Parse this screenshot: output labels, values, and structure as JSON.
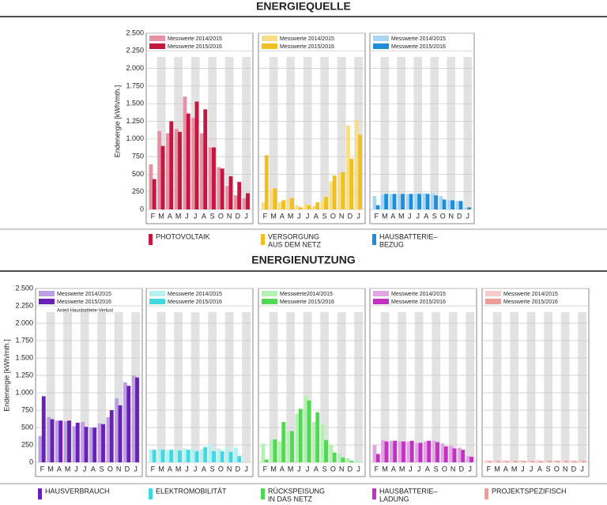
{
  "sections": [
    {
      "title": "ENERGIEQUELLE"
    },
    {
      "title": "ENERGIENUTZUNG"
    }
  ],
  "chart_data": [
    {
      "type": "bar",
      "ylabel": "Endenergie [kWh/mth.]",
      "caption": [
        "PHOTOVOLTAIK"
      ],
      "categories": [
        "F",
        "M",
        "A",
        "M",
        "J",
        "J",
        "A",
        "S",
        "O",
        "N",
        "D",
        "J"
      ],
      "ylim": [
        0,
        2500
      ],
      "yticks": [
        0,
        250,
        500,
        750,
        {
          "value": 1000,
          "label": "1.000"
        },
        {
          "value": 1250,
          "label": "1.250"
        },
        {
          "value": 1500,
          "label": "1.500"
        },
        {
          "value": 1750,
          "label": "1.750"
        },
        {
          "value": 2000,
          "label": "2.000"
        },
        {
          "value": 2250,
          "label": "2.250"
        },
        {
          "value": 2500,
          "label": "2.500"
        }
      ],
      "series": [
        {
          "name": "Messwerte 2014/2015",
          "color": "#e890a4",
          "values": [
            640,
            1110,
            1080,
            1140,
            1600,
            1300,
            1080,
            880,
            600,
            330,
            200,
            160
          ]
        },
        {
          "name": "Messwerte 2015/2016",
          "color": "#c4163e",
          "values": [
            430,
            900,
            1250,
            1100,
            1360,
            1530,
            1420,
            880,
            580,
            470,
            390,
            230
          ]
        }
      ]
    },
    {
      "type": "bar",
      "caption": [
        "VERSORGUNG",
        "AUS DEM NETZ"
      ],
      "categories": [
        "F",
        "M",
        "A",
        "M",
        "J",
        "J",
        "A",
        "S",
        "O",
        "N",
        "D",
        "J"
      ],
      "ylim": [
        0,
        2500
      ],
      "yticks": [
        0,
        250,
        500,
        750,
        1000,
        1250,
        1500,
        1750,
        2000,
        2250,
        2500
      ],
      "series": [
        {
          "name": "Messwerte 2014/2015",
          "color": "#f8de88",
          "values": [
            100,
            280,
            100,
            150,
            60,
            80,
            50,
            120,
            400,
            500,
            1190,
            1270
          ]
        },
        {
          "name": "Messwerte 2015/2016",
          "color": "#f0c020",
          "values": [
            770,
            300,
            130,
            160,
            30,
            60,
            100,
            180,
            480,
            530,
            720,
            1060
          ]
        }
      ]
    },
    {
      "type": "bar",
      "caption": [
        "HAUSBATTERIE–",
        "BEZUG"
      ],
      "categories": [
        "F",
        "M",
        "A",
        "M",
        "J",
        "J",
        "A",
        "S",
        "O",
        "N",
        "D",
        "J"
      ],
      "ylim": [
        0,
        2500
      ],
      "yticks": [
        0,
        250,
        500,
        750,
        1000,
        1250,
        1500,
        1750,
        2000,
        2250,
        2500
      ],
      "series": [
        {
          "name": "Messwerte 2014/2015",
          "color": "#a8d6f4",
          "values": [
            190,
            210,
            220,
            220,
            220,
            220,
            230,
            230,
            190,
            130,
            120,
            20
          ]
        },
        {
          "name": "Messwerte 2015/2016",
          "color": "#1e8ed8",
          "values": [
            60,
            220,
            220,
            220,
            220,
            220,
            220,
            200,
            140,
            130,
            120,
            30
          ]
        }
      ]
    },
    {
      "type": "bar",
      "ylabel": "Endenergie [kWh/mth.]",
      "caption": [
        "HAUSVERBRAUCH"
      ],
      "annotation": "Anteil Hausbatterie-Verlust",
      "categories": [
        "F",
        "M",
        "A",
        "M",
        "J",
        "J",
        "A",
        "S",
        "O",
        "N",
        "D",
        "J"
      ],
      "ylim": [
        0,
        2500
      ],
      "yticks": [
        0,
        250,
        500,
        750,
        {
          "value": 1000,
          "label": "1.000"
        },
        {
          "value": 1250,
          "label": "1.250"
        },
        {
          "value": 1500,
          "label": "1.500"
        },
        {
          "value": 1750,
          "label": "1.750"
        },
        {
          "value": 2000,
          "label": "2.000"
        },
        {
          "value": 2250,
          "label": "2.250"
        },
        {
          "value": 2500,
          "label": "2.500"
        }
      ],
      "series": [
        {
          "name": "Messwerte 2014/2015",
          "color": "#bca0e4",
          "values": [
            380,
            650,
            600,
            590,
            520,
            580,
            500,
            560,
            650,
            920,
            1150,
            1250
          ]
        },
        {
          "name": "Messwerte 2015/2016",
          "color": "#6a20b4",
          "values": [
            950,
            620,
            600,
            600,
            570,
            510,
            500,
            550,
            750,
            820,
            1100,
            1220
          ]
        }
      ]
    },
    {
      "type": "bar",
      "caption": [
        "ELEKTROMOBILITÄT"
      ],
      "categories": [
        "F",
        "M",
        "A",
        "M",
        "J",
        "J",
        "A",
        "S",
        "O",
        "N",
        "D",
        "J"
      ],
      "ylim": [
        0,
        2500
      ],
      "yticks": [
        0,
        250,
        500,
        750,
        1000,
        1250,
        1500,
        1750,
        2000,
        2250,
        2500
      ],
      "series": [
        {
          "name": "Messwerte 2014/2015",
          "color": "#b4f2f2",
          "values": [
            190,
            200,
            180,
            200,
            200,
            190,
            190,
            260,
            200,
            220,
            210,
            0
          ]
        },
        {
          "name": "Messwerte 2015/2016",
          "color": "#40d8e2",
          "values": [
            180,
            180,
            180,
            170,
            180,
            160,
            220,
            160,
            160,
            150,
            90,
            0
          ]
        }
      ]
    },
    {
      "type": "bar",
      "caption": [
        "RÜCKSPEISUNG",
        "IN DAS NETZ"
      ],
      "categories": [
        "F",
        "M",
        "A",
        "M",
        "J",
        "J",
        "A",
        "S",
        "O",
        "N",
        "D",
        "J"
      ],
      "ylim": [
        0,
        2500
      ],
      "yticks": [
        0,
        250,
        500,
        750,
        1000,
        1250,
        1500,
        1750,
        2000,
        2250,
        2500
      ],
      "series": [
        {
          "name": "Messwerte2014/2015",
          "color": "#b4f2b4",
          "values": [
            270,
            330,
            300,
            450,
            700,
            950,
            580,
            550,
            250,
            120,
            60,
            30
          ]
        },
        {
          "name": "Messwerte 2015/2016",
          "color": "#52d852",
          "values": [
            40,
            330,
            580,
            450,
            770,
            890,
            720,
            320,
            140,
            70,
            20,
            0
          ]
        }
      ]
    },
    {
      "type": "bar",
      "caption": [
        "HAUSBATTERIE–",
        "LADUNG"
      ],
      "categories": [
        "F",
        "M",
        "A",
        "M",
        "J",
        "J",
        "A",
        "S",
        "O",
        "N",
        "D",
        "J"
      ],
      "ylim": [
        0,
        2500
      ],
      "yticks": [
        0,
        250,
        500,
        750,
        1000,
        1250,
        1500,
        1750,
        2000,
        2250,
        2500
      ],
      "series": [
        {
          "name": "Messwerte 2014/2015",
          "color": "#e2a4e2",
          "values": [
            250,
            320,
            310,
            300,
            300,
            280,
            300,
            310,
            270,
            240,
            210,
            90
          ]
        },
        {
          "name": "Messwerte 2015/2016",
          "color": "#c232c2",
          "values": [
            120,
            300,
            310,
            300,
            310,
            280,
            310,
            290,
            230,
            200,
            180,
            80
          ]
        }
      ]
    },
    {
      "type": "bar",
      "caption": [
        "PROJEKTSPEZIFISCH"
      ],
      "categories": [
        "F",
        "M",
        "A",
        "M",
        "J",
        "J",
        "A",
        "S",
        "O",
        "N",
        "D",
        "J"
      ],
      "ylim": [
        0,
        2500
      ],
      "yticks": [
        0,
        250,
        500,
        750,
        1000,
        1250,
        1500,
        1750,
        2000,
        2250,
        2500
      ],
      "series": [
        {
          "name": "Messwerte 2014/2015",
          "color": "#f8cccc",
          "values": [
            30,
            30,
            30,
            30,
            30,
            30,
            30,
            30,
            30,
            30,
            30,
            30
          ]
        },
        {
          "name": "Messwerte 2015/2016",
          "color": "#f09a9a",
          "values": [
            20,
            20,
            20,
            20,
            20,
            20,
            20,
            20,
            20,
            20,
            20,
            20
          ]
        }
      ]
    }
  ]
}
